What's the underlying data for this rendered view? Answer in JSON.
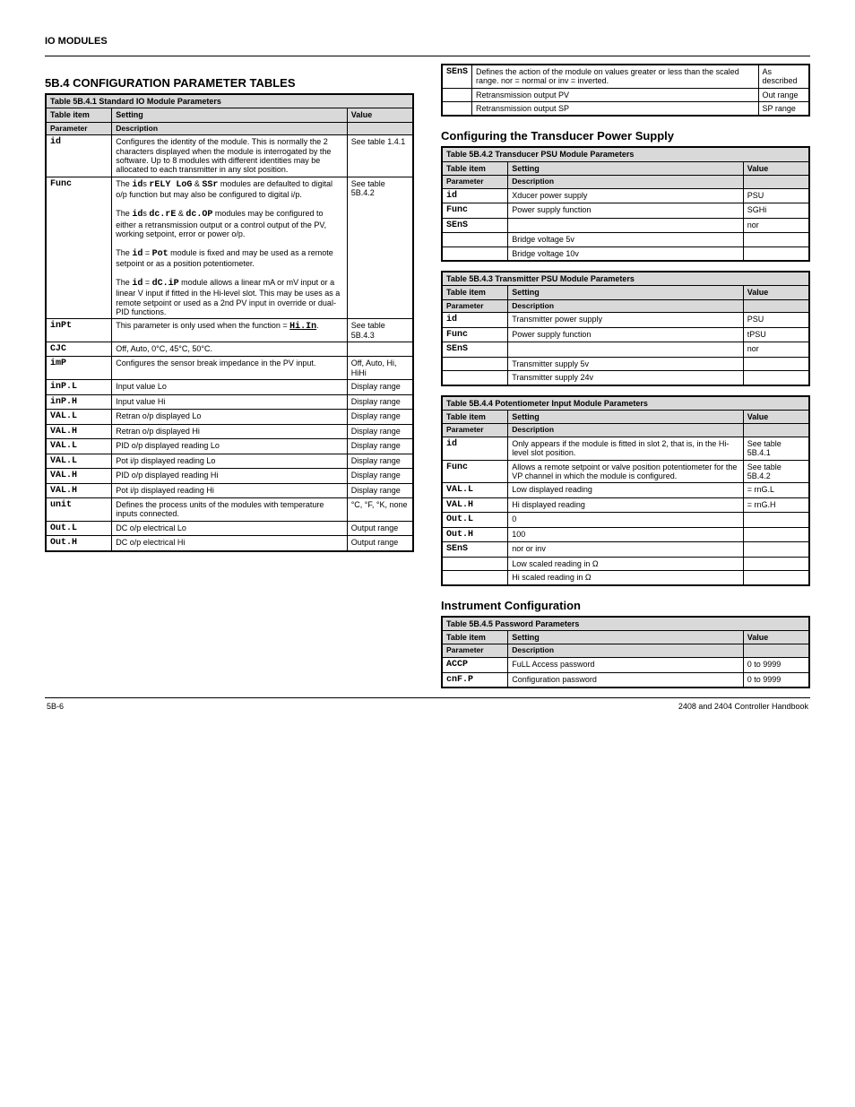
{
  "header": "IO MODULES",
  "section_main": "5B.4 CONFIGURATION PARAMETER TABLES",
  "table1": {
    "caption": "Table 5B.4.1 Standard IO Module Parameters",
    "headers": [
      "Table item",
      "Setting",
      "Value"
    ],
    "sub": [
      "Parameter",
      "Description",
      ""
    ],
    "rows": [
      {
        "code": "id",
        "desc": "Configures the identity of the module. This is normally the 2 characters displayed when the module is interrogated by the software. Up to 8 modules with different identities may be allocated to each transmitter in any slot position.",
        "val": "See table 1.4.1"
      },
      {
        "code": "Func",
        "desc_html": "The <span class='code'>id</span>s <span class='code'>rELY LoG</span> & <span class='code'>SSr</span> modules are defaulted to digital o/p function but may also be configured to digital i/p.<br><br>The <span class='code'>id</span>s <span class='code'>dc.rE</span> & <span class='code'>dc.OP</span> modules may be configured to either a retransmission output or a control output of the PV, working setpoint, error or power o/p.<br><br>The <span class='code'>id</span> = <span class='code'>Pot</span> module is fixed and may be used as a remote setpoint or as a position potentiometer.<br><br>The <span class='code'>id</span> = <span class='code'>dC.iP</span> module allows a linear mA or mV input or a linear V input if fitted in the Hi-level slot. This may be uses as a remote setpoint or used as a 2nd PV input in override or dual-PID functions.",
        "val": "See table 5B.4.2"
      },
      {
        "code": "inPt",
        "desc_html": "This parameter is only used when the function = <span class='code underline'>Hi.In</span>.",
        "val": "See table 5B.4.3"
      },
      {
        "code": "CJC",
        "desc": "Off, Auto, 0°C, 45°C, 50°C.",
        "val": ""
      },
      {
        "code": "imP",
        "desc": "Configures the sensor break impedance in the PV input.",
        "val": "Off, Auto, Hi, HiHi"
      },
      {
        "code": "inP.L",
        "desc": "Input value Lo",
        "val": "Display range"
      },
      {
        "code": "inP.H",
        "desc": "Input value Hi",
        "val": "Display range"
      },
      {
        "code": "VAL.L",
        "desc": "Retran o/p displayed Lo",
        "val": "Display range"
      },
      {
        "code": "VAL.H",
        "desc": "Retran o/p displayed Hi",
        "val": "Display range"
      },
      {
        "code": "VAL.L",
        "desc": "PID o/p displayed reading Lo",
        "val": "Display range"
      },
      {
        "code": "VAL.L",
        "desc": "Pot i/p displayed reading Lo",
        "val": "Display range"
      },
      {
        "code": "VAL.H",
        "desc": "PID o/p displayed reading Hi",
        "val": "Display range"
      },
      {
        "code": "VAL.H",
        "desc": "Pot i/p displayed reading Hi",
        "val": "Display range"
      },
      {
        "code": "unit",
        "desc": "Defines the process units of the modules with temperature inputs connected.",
        "val": "°C, °F, °K, none"
      },
      {
        "code": "Out.L",
        "desc": "DC o/p electrical Lo",
        "val": "Output range"
      },
      {
        "code": "Out.H",
        "desc": "DC o/p electrical Hi",
        "val": "Output range"
      }
    ]
  },
  "table1b_rows": [
    {
      "code": "SEnS",
      "desc": "Defines the action of the module on values greater or less than the scaled range. nor = normal or inv = inverted.",
      "val": "As described"
    },
    {
      "code": "",
      "desc": "Retransmission output PV",
      "val": "Out range"
    },
    {
      "code": "",
      "desc": "Retransmission output SP",
      "val": "SP range"
    }
  ],
  "transducer_title": "Configuring the Transducer Power Supply",
  "table2": {
    "caption": "Table 5B.4.2 Transducer PSU Module Parameters",
    "headers": [
      "Table item",
      "Setting",
      "Value"
    ],
    "sub": [
      "Parameter",
      "Description",
      ""
    ],
    "rows": [
      {
        "code": "id",
        "desc": "Xducer power supply",
        "val": "PSU"
      },
      {
        "code": "Func",
        "desc": "Power supply function",
        "val": "SGHi"
      },
      {
        "code": "SEnS",
        "desc": "",
        "val": "nor"
      },
      {
        "code": "",
        "desc": "Bridge voltage 5v",
        "val": ""
      },
      {
        "code": "",
        "desc": "Bridge voltage 10v",
        "val": ""
      }
    ]
  },
  "table3": {
    "caption": "Table 5B.4.3 Transmitter PSU Module Parameters",
    "headers": [
      "Table item",
      "Setting",
      "Value"
    ],
    "sub": [
      "Parameter",
      "Description",
      ""
    ],
    "rows": [
      {
        "code": "id",
        "desc": "Transmitter power supply",
        "val": "PSU"
      },
      {
        "code": "Func",
        "desc": "Power supply function",
        "val": "tPSU"
      },
      {
        "code": "SEnS",
        "desc": "",
        "val": "nor"
      },
      {
        "code": "",
        "desc": "Transmitter supply 5v",
        "val": ""
      },
      {
        "code": "",
        "desc": "Transmitter supply 24v",
        "val": ""
      }
    ]
  },
  "table4": {
    "caption": "Table 5B.4.4 Potentiometer Input Module Parameters",
    "headers": [
      "Table item",
      "Setting",
      "Value"
    ],
    "sub": [
      "Parameter",
      "Description",
      ""
    ],
    "rows": [
      {
        "code": "id",
        "desc": "Only appears if the module is fitted in slot 2, that is, in the Hi-level slot position.",
        "val": "See table 5B.4.1"
      },
      {
        "code": "Func",
        "desc": "Allows a remote setpoint or valve position potentiometer for the VP channel in which the module is configured.",
        "val": "See table 5B.4.2"
      },
      {
        "code": "VAL.L",
        "desc": "Low displayed reading",
        "val": "= rnG.L"
      },
      {
        "code": "VAL.H",
        "desc": "Hi displayed reading",
        "val": "= rnG.H"
      },
      {
        "code": "Out.L",
        "desc": "0",
        "val": ""
      },
      {
        "code": "Out.H",
        "desc": "100",
        "val": ""
      },
      {
        "code": "SEnS",
        "desc": "nor or inv",
        "val": ""
      },
      {
        "code": "",
        "desc": "Low scaled reading in Ω",
        "val": ""
      },
      {
        "code": "",
        "desc": "Hi scaled reading in Ω",
        "val": ""
      }
    ]
  },
  "instr_title": "Instrument Configuration",
  "table5": {
    "caption": "Table 5B.4.5 Password Parameters",
    "headers": [
      "Table item",
      "Setting",
      "Value"
    ],
    "sub": [
      "Parameter",
      "Description",
      ""
    ],
    "rows": [
      {
        "code": "ACCP",
        "desc": "FuLL Access password",
        "val": "0 to 9999"
      },
      {
        "code": "cnF.P",
        "desc": "Configuration password",
        "val": "0 to 9999"
      }
    ]
  },
  "footer": {
    "left": "5B-6",
    "right": "2408 and 2404 Controller Handbook"
  }
}
